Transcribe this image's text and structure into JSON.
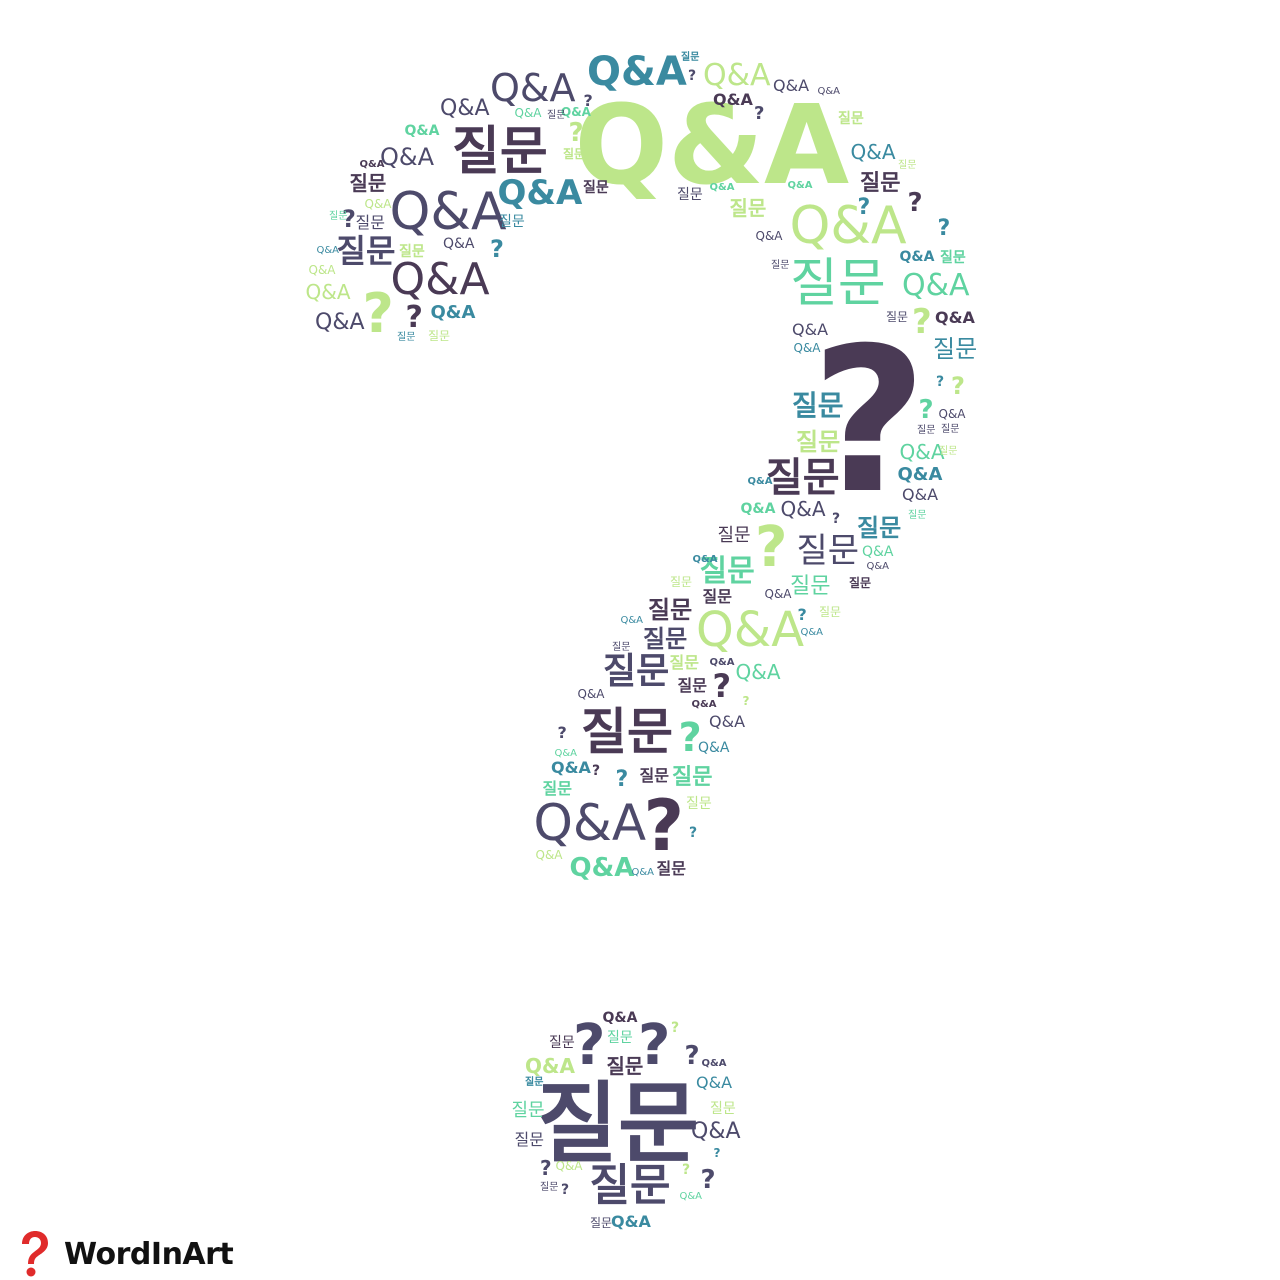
{
  "colors": {
    "purple": "#4a3a55",
    "slate": "#4d4a6b",
    "teal": "#3a8aa0",
    "green": "#5fd3a0",
    "lime": "#bde68a",
    "brand_red": "#e02b2b"
  },
  "terms": {
    "qa": "Q&A",
    "question": "질문",
    "mark": "?"
  },
  "brand": {
    "icon": "question-mark-icon",
    "name": "WordInArt"
  }
}
